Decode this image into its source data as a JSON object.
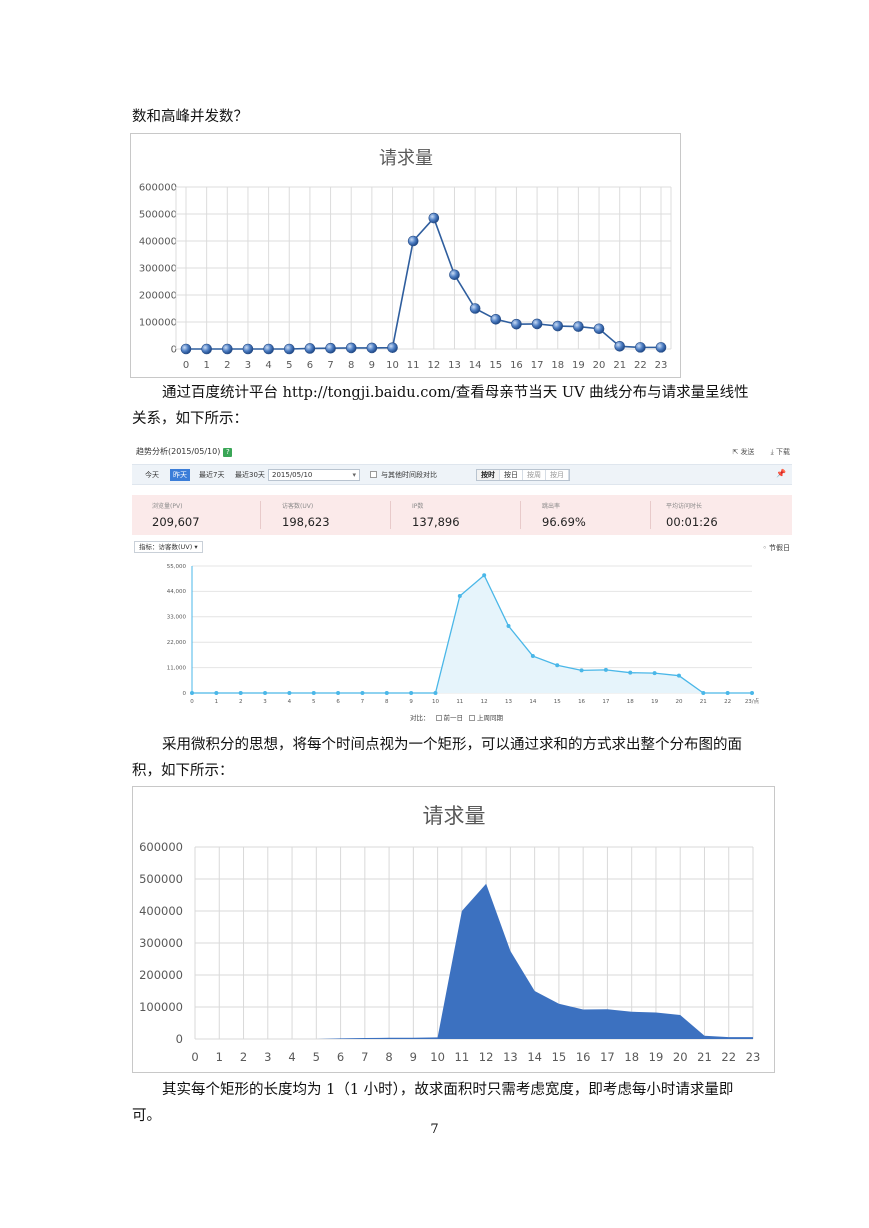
{
  "text": {
    "p1": "数和高峰并发数？",
    "p2": "通过百度统计平台 http://tongji.baidu.com/查看母亲节当天 UV 曲线分布与请求量呈线性关系，如下所示：",
    "p3": "采用微积分的思想，将每个时间点视为一个矩形，可以通过求和的方式求出整个分布图的面积，如下所示：",
    "p4": "其实每个矩形的长度均为 1（1 小时），故求面积时只需考虑宽度，即考虑每小时请求量即可。",
    "page_number": "7"
  },
  "baidu": {
    "title": "趋势分析(2015/05/10)",
    "help_icon": "?",
    "actions": [
      "发送",
      "下载"
    ],
    "toolbar": {
      "buttons": [
        "今天",
        "昨天",
        "最近7天",
        "最近30天"
      ],
      "active_button": "昨天",
      "date_value": "2015/05/10",
      "compare_checkbox_label": "与其他时间段对比",
      "granularity": [
        "按时",
        "按日",
        "按周",
        "按月"
      ],
      "granularity_active": "按时"
    },
    "stats": [
      {
        "label": "浏览量(PV)",
        "value": "209,607"
      },
      {
        "label": "访客数(UV)",
        "value": "198,623"
      },
      {
        "label": "IP数",
        "value": "137,896"
      },
      {
        "label": "跳出率",
        "value": "96.69%"
      },
      {
        "label": "平均访问时长",
        "value": "00:01:26"
      }
    ],
    "metric_select": "指标：访客数(UV)",
    "holiday_label": "节假日",
    "compare_label": "对比：",
    "compare_options": [
      "前一日",
      "上周同期"
    ]
  },
  "chart_data": [
    {
      "type": "line",
      "title": "请求量",
      "x": [
        0,
        1,
        2,
        3,
        4,
        5,
        6,
        7,
        8,
        9,
        10,
        11,
        12,
        13,
        14,
        15,
        16,
        17,
        18,
        19,
        20,
        21,
        22,
        23
      ],
      "values": [
        0,
        0,
        0,
        0,
        0,
        0,
        2000,
        3000,
        4000,
        4000,
        5000,
        400000,
        485000,
        275000,
        150000,
        110000,
        92000,
        93000,
        85000,
        83000,
        75000,
        10000,
        6000,
        6000
      ],
      "yticks": [
        "0",
        "100000",
        "200000",
        "300000",
        "400000",
        "500000",
        "600000"
      ],
      "ylim": [
        0,
        600000
      ],
      "grid": true,
      "marker_color": "#3a6bb5",
      "line_color": "#2f5e9e"
    },
    {
      "type": "area",
      "title": "",
      "x_labels": [
        "0",
        "1",
        "2",
        "3",
        "4",
        "5",
        "6",
        "7",
        "8",
        "9",
        "10",
        "11",
        "12",
        "13",
        "14",
        "15",
        "16",
        "17",
        "18",
        "19",
        "20",
        "21",
        "22",
        "23/点"
      ],
      "values": [
        0,
        0,
        0,
        0,
        0,
        0,
        0,
        0,
        0,
        0,
        0,
        42000,
        51000,
        29000,
        16000,
        12000,
        9800,
        10000,
        8800,
        8600,
        7500,
        0,
        0,
        0
      ],
      "yticks": [
        "0",
        "11,000",
        "22,000",
        "33,000",
        "44,000",
        "55,000"
      ],
      "ylim": [
        0,
        55000
      ],
      "grid": true,
      "line_color": "#4ab7e8",
      "fill_color": "#e6f4fb"
    },
    {
      "type": "area",
      "title": "请求量",
      "x": [
        0,
        1,
        2,
        3,
        4,
        5,
        6,
        7,
        8,
        9,
        10,
        11,
        12,
        13,
        14,
        15,
        16,
        17,
        18,
        19,
        20,
        21,
        22,
        23
      ],
      "values": [
        0,
        0,
        0,
        0,
        0,
        0,
        2000,
        3000,
        4000,
        4000,
        5000,
        400000,
        485000,
        275000,
        150000,
        110000,
        92000,
        93000,
        85000,
        83000,
        75000,
        10000,
        6000,
        6000
      ],
      "yticks": [
        "0",
        "100000",
        "200000",
        "300000",
        "400000",
        "500000",
        "600000"
      ],
      "ylim": [
        0,
        600000
      ],
      "grid": true,
      "fill_color": "#3c71c0"
    }
  ]
}
